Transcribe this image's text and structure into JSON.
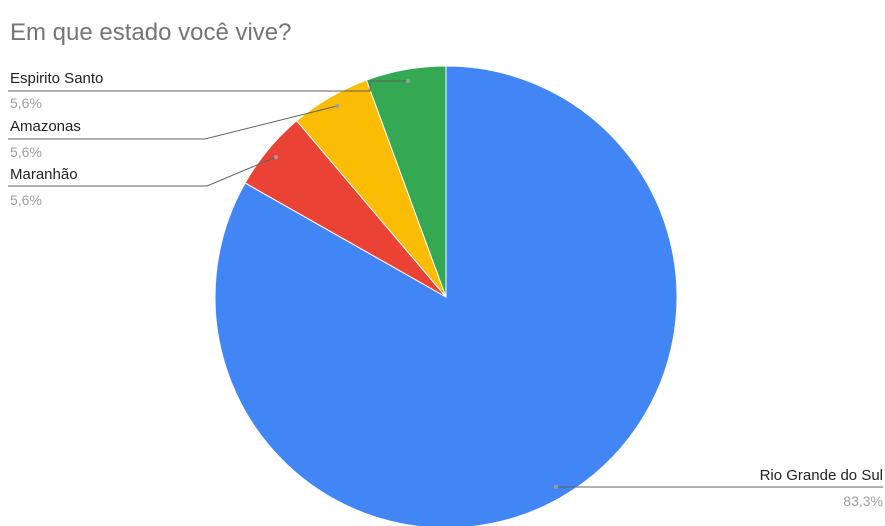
{
  "chart_data": {
    "type": "pie",
    "title": "Em que estado você vive?",
    "start_angle_deg": 0,
    "direction": "clockwise",
    "slices": [
      {
        "label": "Rio Grande do Sul",
        "value": 83.3,
        "percent_label": "83,3%",
        "color": "#4285f4",
        "label_side": "right"
      },
      {
        "label": "Maranhão",
        "value": 5.6,
        "percent_label": "5,6%",
        "color": "#ea4335",
        "label_side": "left"
      },
      {
        "label": "Amazonas",
        "value": 5.6,
        "percent_label": "5,6%",
        "color": "#fbbc04",
        "label_side": "left"
      },
      {
        "label": "Espirito Santo",
        "value": 5.6,
        "percent_label": "5,6%",
        "color": "#34a853",
        "label_side": "left"
      }
    ],
    "legend": "none"
  }
}
